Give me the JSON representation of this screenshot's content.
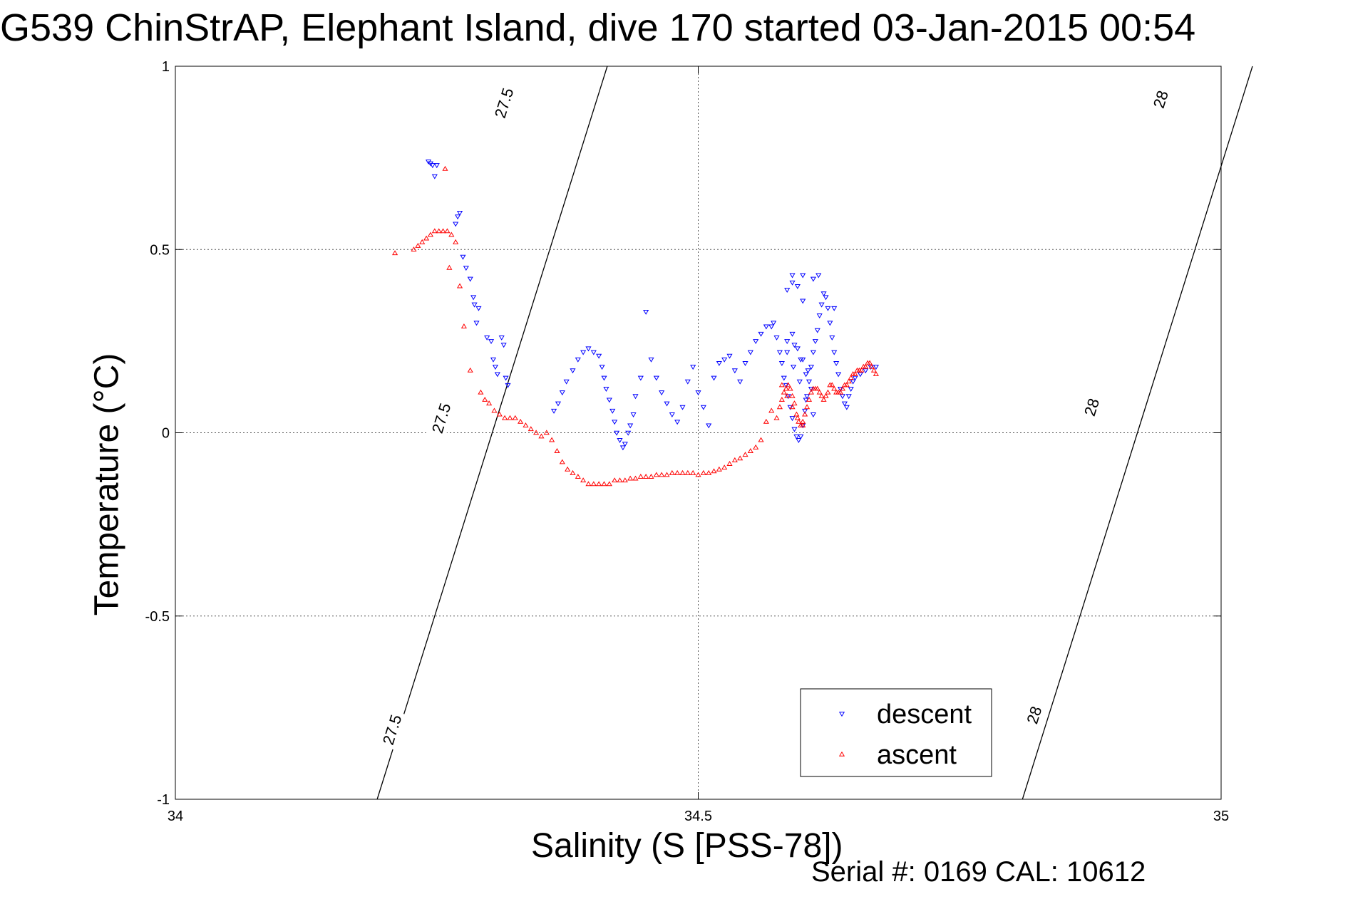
{
  "chart_data": {
    "type": "scatter",
    "title": "G539 ChinStrAP, Elephant Island, dive 170 started 03-Jan-2015 00:54",
    "xlabel": "Salinity (S [PSS-78])",
    "ylabel": "Temperature (°C)",
    "footer": "Serial #: 0169 CAL: 10612",
    "xlim": [
      34,
      35
    ],
    "ylim": [
      -1,
      1
    ],
    "xticks": [
      34,
      34.5,
      35
    ],
    "xtick_labels": [
      "34",
      "34.5",
      "35"
    ],
    "yticks": [
      -1,
      -0.5,
      0,
      0.5,
      1
    ],
    "ytick_labels": [
      "-1",
      "-0.5",
      "0",
      "0.5",
      "1"
    ],
    "grid": true,
    "legend_position": "bottom-right",
    "contours": [
      {
        "label": "27.5",
        "points": [
          [
            34.193,
            -1
          ],
          [
            34.215,
            -0.8
          ],
          [
            34.248,
            -0.5
          ],
          [
            34.303,
            0
          ],
          [
            34.358,
            0.5
          ],
          [
            34.413,
            1
          ]
        ],
        "label_positions": [
          [
            34.207,
            -0.81
          ],
          [
            34.254,
            0.04
          ],
          [
            34.314,
            0.9
          ]
        ]
      },
      {
        "label": "28",
        "points": [
          [
            34.81,
            -1
          ],
          [
            34.832,
            -0.8
          ],
          [
            34.865,
            -0.5
          ],
          [
            34.92,
            0
          ],
          [
            34.975,
            0.5
          ],
          [
            35.03,
            1
          ]
        ],
        "label_positions": [
          [
            34.821,
            -0.77
          ],
          [
            34.876,
            0.07
          ],
          [
            34.942,
            0.91
          ]
        ]
      }
    ],
    "series": [
      {
        "name": "descent",
        "color": "#0000ff",
        "marker": "triangle-down",
        "x": [
          34.242,
          34.244,
          34.246,
          34.248,
          34.25,
          34.268,
          34.27,
          34.272,
          34.275,
          34.278,
          34.282,
          34.285,
          34.286,
          34.288,
          34.29,
          34.298,
          34.302,
          34.304,
          34.306,
          34.308,
          34.312,
          34.314,
          34.316,
          34.318,
          34.362,
          34.366,
          34.37,
          34.374,
          34.38,
          34.385,
          34.39,
          34.395,
          34.4,
          34.405,
          34.408,
          34.41,
          34.412,
          34.415,
          34.418,
          34.42,
          34.422,
          34.425,
          34.428,
          34.43,
          34.433,
          34.435,
          34.438,
          34.44,
          34.445,
          34.45,
          34.455,
          34.46,
          34.465,
          34.47,
          34.475,
          34.48,
          34.485,
          34.49,
          34.495,
          34.5,
          34.505,
          34.51,
          34.515,
          34.52,
          34.525,
          34.53,
          34.535,
          34.54,
          34.545,
          34.55,
          34.555,
          34.56,
          34.565,
          34.57,
          34.572,
          34.575,
          34.578,
          34.58,
          34.582,
          34.584,
          34.586,
          34.588,
          34.59,
          34.592,
          34.594,
          34.596,
          34.598,
          34.6,
          34.602,
          34.604,
          34.606,
          34.608,
          34.61,
          34.612,
          34.614,
          34.616,
          34.618,
          34.62,
          34.622,
          34.624,
          34.626,
          34.628,
          34.63,
          34.632,
          34.634,
          34.636,
          34.638,
          34.64,
          34.642,
          34.644,
          34.646,
          34.648,
          34.65,
          34.655,
          34.66,
          34.665,
          34.67,
          34.61,
          34.6,
          34.59,
          34.585,
          34.592,
          34.598,
          34.603,
          34.608,
          34.59,
          34.595,
          34.6,
          34.585,
          34.591,
          34.597,
          34.603,
          34.61,
          34.585,
          34.59,
          34.595,
          34.6,
          34.605,
          34.615,
          34.63
        ],
        "y": [
          0.74,
          0.735,
          0.73,
          0.7,
          0.73,
          0.57,
          0.59,
          0.6,
          0.48,
          0.45,
          0.42,
          0.37,
          0.35,
          0.3,
          0.34,
          0.26,
          0.25,
          0.2,
          0.18,
          0.16,
          0.26,
          0.24,
          0.15,
          0.13,
          0.06,
          0.08,
          0.11,
          0.14,
          0.17,
          0.2,
          0.22,
          0.23,
          0.22,
          0.21,
          0.18,
          0.15,
          0.12,
          0.09,
          0.06,
          0.03,
          0.0,
          -0.02,
          -0.04,
          -0.03,
          0.0,
          0.02,
          0.05,
          0.1,
          0.15,
          0.33,
          0.2,
          0.15,
          0.11,
          0.08,
          0.05,
          0.03,
          0.07,
          0.14,
          0.18,
          0.11,
          0.07,
          0.02,
          0.15,
          0.19,
          0.2,
          0.21,
          0.17,
          0.14,
          0.19,
          0.22,
          0.25,
          0.27,
          0.29,
          0.29,
          0.3,
          0.26,
          0.22,
          0.19,
          0.15,
          0.13,
          0.1,
          0.07,
          0.04,
          0.01,
          -0.01,
          -0.02,
          -0.01,
          0.02,
          0.06,
          0.1,
          0.14,
          0.18,
          0.22,
          0.25,
          0.28,
          0.32,
          0.35,
          0.38,
          0.37,
          0.34,
          0.3,
          0.26,
          0.22,
          0.19,
          0.16,
          0.12,
          0.1,
          0.08,
          0.07,
          0.1,
          0.12,
          0.14,
          0.15,
          0.16,
          0.17,
          0.18,
          0.18,
          0.42,
          0.43,
          0.41,
          0.39,
          0.24,
          0.2,
          0.16,
          0.12,
          0.43,
          0.4,
          0.36,
          0.22,
          0.18,
          0.14,
          0.09,
          0.05,
          0.25,
          0.27,
          0.23,
          0.2,
          0.17,
          0.43,
          0.34
        ],
        "point_count_note": ""
      },
      {
        "name": "ascent",
        "color": "#ff0000",
        "marker": "triangle-up",
        "x": [
          34.21,
          34.228,
          34.232,
          34.236,
          34.24,
          34.244,
          34.248,
          34.252,
          34.256,
          34.26,
          34.264,
          34.268,
          34.272,
          34.276,
          34.282,
          34.292,
          34.296,
          34.3,
          34.305,
          34.31,
          34.315,
          34.32,
          34.325,
          34.33,
          34.335,
          34.34,
          34.345,
          34.35,
          34.355,
          34.36,
          34.365,
          34.37,
          34.375,
          34.38,
          34.385,
          34.39,
          34.395,
          34.4,
          34.405,
          34.41,
          34.415,
          34.42,
          34.425,
          34.43,
          34.435,
          34.44,
          34.445,
          34.45,
          34.455,
          34.46,
          34.465,
          34.47,
          34.475,
          34.48,
          34.485,
          34.49,
          34.495,
          34.5,
          34.505,
          34.51,
          34.515,
          34.52,
          34.525,
          34.53,
          34.535,
          34.54,
          34.545,
          34.55,
          34.555,
          34.56,
          34.565,
          34.57,
          34.575,
          34.578,
          34.58,
          34.582,
          34.584,
          34.586,
          34.588,
          34.59,
          34.592,
          34.594,
          34.596,
          34.598,
          34.6,
          34.602,
          34.604,
          34.606,
          34.608,
          34.61,
          34.612,
          34.614,
          34.616,
          34.618,
          34.62,
          34.622,
          34.624,
          34.626,
          34.628,
          34.63,
          34.632,
          34.634,
          34.636,
          34.638,
          34.64,
          34.642,
          34.644,
          34.646,
          34.648,
          34.65,
          34.652,
          34.654,
          34.656,
          34.658,
          34.66,
          34.662,
          34.664,
          34.666,
          34.668,
          34.67,
          34.258,
          34.262,
          34.58,
          34.585,
          34.59,
          34.595,
          34.6
        ],
        "y": [
          0.49,
          0.5,
          0.51,
          0.52,
          0.53,
          0.54,
          0.55,
          0.55,
          0.55,
          0.55,
          0.54,
          0.52,
          0.4,
          0.29,
          0.17,
          0.11,
          0.09,
          0.08,
          0.06,
          0.05,
          0.04,
          0.04,
          0.04,
          0.03,
          0.02,
          0.01,
          0.0,
          -0.01,
          0.0,
          -0.02,
          -0.05,
          -0.08,
          -0.1,
          -0.11,
          -0.12,
          -0.13,
          -0.14,
          -0.14,
          -0.14,
          -0.14,
          -0.14,
          -0.13,
          -0.13,
          -0.13,
          -0.125,
          -0.125,
          -0.12,
          -0.12,
          -0.12,
          -0.115,
          -0.115,
          -0.115,
          -0.11,
          -0.11,
          -0.11,
          -0.11,
          -0.11,
          -0.115,
          -0.11,
          -0.11,
          -0.105,
          -0.1,
          -0.095,
          -0.085,
          -0.075,
          -0.07,
          -0.06,
          -0.05,
          -0.04,
          -0.02,
          0.03,
          0.06,
          0.04,
          0.07,
          0.09,
          0.11,
          0.12,
          0.13,
          0.12,
          0.1,
          0.08,
          0.05,
          0.03,
          0.02,
          0.03,
          0.05,
          0.07,
          0.09,
          0.11,
          0.12,
          0.12,
          0.12,
          0.11,
          0.1,
          0.09,
          0.1,
          0.11,
          0.13,
          0.13,
          0.12,
          0.11,
          0.11,
          0.11,
          0.12,
          0.13,
          0.13,
          0.14,
          0.15,
          0.16,
          0.16,
          0.17,
          0.17,
          0.17,
          0.18,
          0.18,
          0.19,
          0.19,
          0.18,
          0.17,
          0.16,
          0.72,
          0.45,
          0.13,
          0.1,
          0.07,
          0.04,
          0.02
        ]
      }
    ]
  }
}
